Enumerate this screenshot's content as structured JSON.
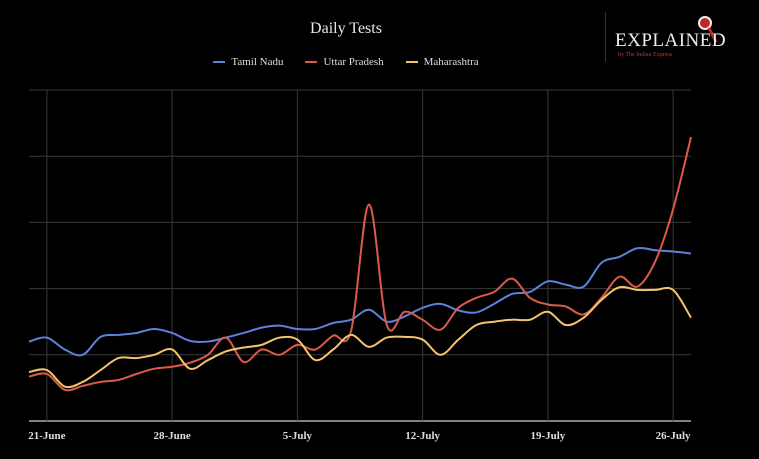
{
  "chart_data": {
    "type": "line",
    "title": "Daily Tests",
    "xlabel": "",
    "ylabel": "",
    "x": [
      0,
      1,
      2,
      3,
      4,
      5,
      6,
      7,
      8,
      9,
      10,
      11,
      12,
      13,
      14,
      15,
      16,
      17,
      18,
      19,
      20,
      21,
      22,
      23,
      24,
      25,
      26,
      27,
      28,
      29,
      30,
      31,
      32,
      33,
      34,
      35,
      36,
      37
    ],
    "x_note_unit": "days from 20-June",
    "xticks": [
      {
        "day": 1,
        "label": "21-June"
      },
      {
        "day": 8,
        "label": "28-June"
      },
      {
        "day": 15,
        "label": "5-July"
      },
      {
        "day": 22,
        "label": "12-July"
      },
      {
        "day": 29,
        "label": "19-July"
      },
      {
        "day": 36,
        "label": "26-July"
      }
    ],
    "ylim": [
      0,
      5
    ],
    "ygrid": [
      0,
      1,
      2,
      3,
      4,
      5
    ],
    "grid": true,
    "legend_position": "top-center",
    "series": [
      {
        "name": "Tamil Nadu",
        "color": "#5d82dc",
        "values": [
          1.2,
          1.26,
          1.08,
          1.0,
          1.27,
          1.3,
          1.33,
          1.39,
          1.33,
          1.21,
          1.2,
          1.26,
          1.33,
          1.41,
          1.44,
          1.39,
          1.39,
          1.48,
          1.53,
          1.68,
          1.5,
          1.58,
          1.71,
          1.77,
          1.67,
          1.64,
          1.77,
          1.92,
          1.95,
          2.11,
          2.06,
          2.03,
          2.39,
          2.48,
          2.61,
          2.58,
          2.56,
          2.53
        ]
      },
      {
        "name": "Uttar Pradesh",
        "color": "#dc5a4b",
        "values": [
          0.67,
          0.71,
          0.47,
          0.53,
          0.59,
          0.62,
          0.71,
          0.79,
          0.82,
          0.88,
          1.0,
          1.26,
          0.89,
          1.08,
          1.0,
          1.15,
          1.08,
          1.29,
          1.36,
          3.27,
          1.45,
          1.65,
          1.53,
          1.38,
          1.71,
          1.86,
          1.95,
          2.15,
          1.86,
          1.76,
          1.73,
          1.61,
          1.86,
          2.18,
          2.03,
          2.41,
          3.2,
          4.29
        ]
      },
      {
        "name": "Maharashtra",
        "color": "#f3c46c",
        "values": [
          0.74,
          0.77,
          0.52,
          0.59,
          0.77,
          0.95,
          0.95,
          1.0,
          1.08,
          0.79,
          0.92,
          1.05,
          1.11,
          1.15,
          1.26,
          1.23,
          0.92,
          1.08,
          1.3,
          1.12,
          1.26,
          1.27,
          1.23,
          1.0,
          1.23,
          1.45,
          1.5,
          1.53,
          1.53,
          1.65,
          1.45,
          1.56,
          1.83,
          2.02,
          1.98,
          1.98,
          1.98,
          1.56
        ]
      }
    ]
  },
  "logo": {
    "text": "EXPLAINED",
    "subtext": "by The Indian Express"
  }
}
